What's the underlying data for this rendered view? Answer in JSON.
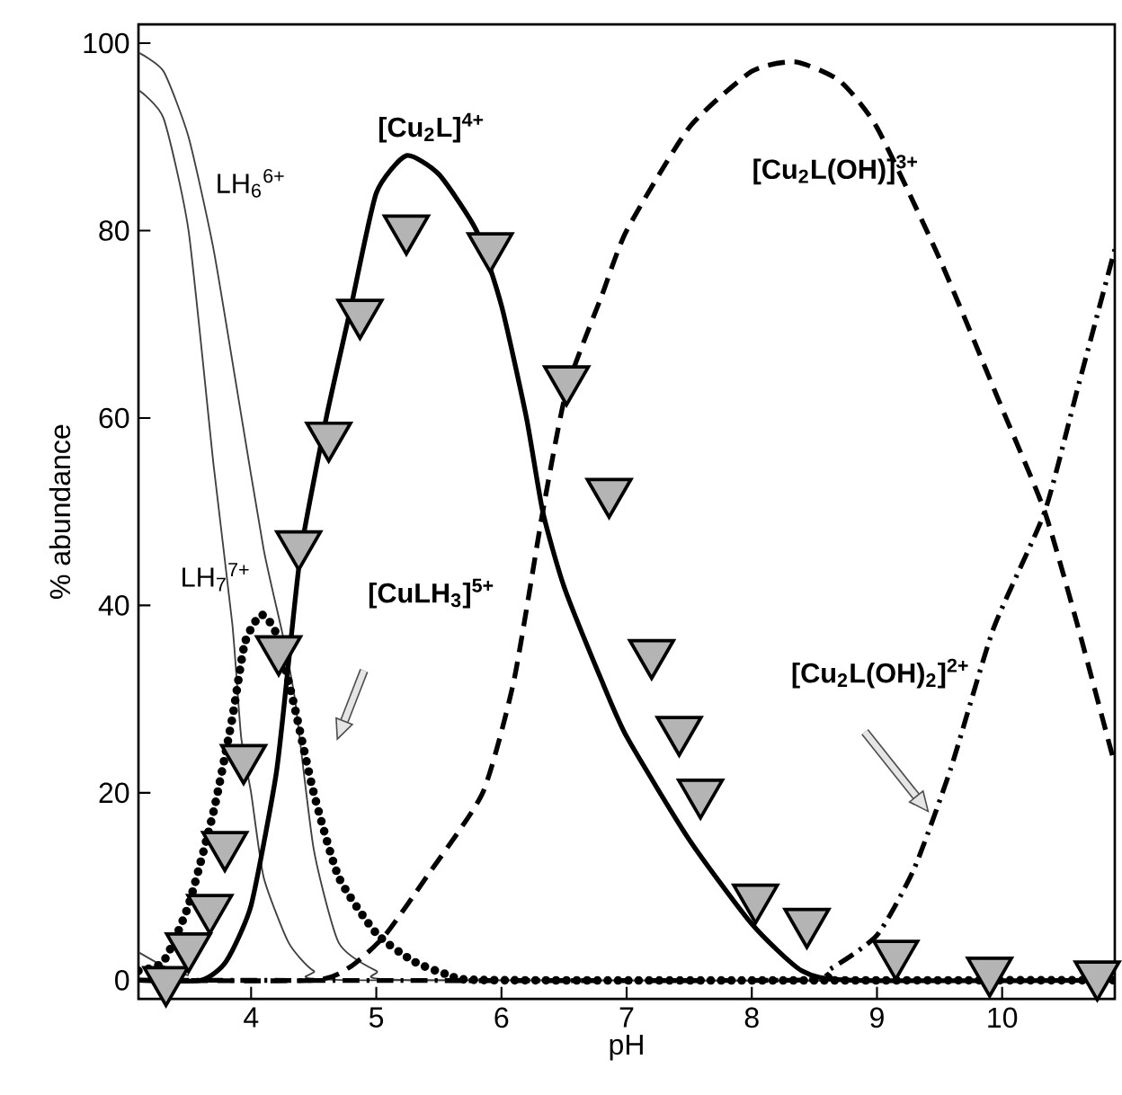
{
  "chart_data": {
    "type": "line",
    "xlabel": "pH",
    "ylabel": "% abundance",
    "xlim": [
      3.1,
      10.9
    ],
    "ylim": [
      -2,
      102
    ],
    "xticks": [
      4,
      5,
      6,
      7,
      8,
      9,
      10
    ],
    "yticks": [
      0,
      20,
      40,
      60,
      80,
      100
    ],
    "series": [
      {
        "color": "#404040",
        "line_style": "solid",
        "x": [
          3.1,
          3.3,
          3.5,
          3.7,
          3.9,
          4.1,
          4.25,
          4.35,
          4.5,
          4.7,
          5.0,
          5.3,
          10.9
        ],
        "values": [
          99,
          97,
          90,
          78,
          62,
          46,
          37,
          30,
          14,
          4,
          1,
          0,
          0
        ]
      },
      {
        "color": "#404040",
        "line_style": "solid",
        "x": [
          3.1,
          3.3,
          3.5,
          3.7,
          3.85,
          3.92,
          4.0,
          4.1,
          4.3,
          4.5,
          4.8,
          10.9
        ],
        "values": [
          95,
          92,
          80,
          55,
          38,
          26,
          20,
          11,
          4,
          1,
          0,
          0
        ]
      },
      {
        "color": "#404040",
        "line_style": "solid",
        "x": [
          3.1,
          3.3,
          3.5
        ],
        "values": [
          3,
          1.5,
          0.5
        ]
      },
      {
        "color": "#000000",
        "line_style": "dotted",
        "x": [
          3.1,
          3.3,
          3.5,
          3.7,
          3.85,
          3.95,
          4.08,
          4.2,
          4.35,
          4.5,
          4.7,
          5.0,
          5.3,
          5.6,
          6.0,
          10.9
        ],
        "values": [
          1,
          2,
          8,
          18,
          28,
          36,
          39,
          37,
          29,
          20,
          11,
          5,
          2,
          0.5,
          0,
          0
        ]
      },
      {
        "color": "#000000",
        "line_style": "solid",
        "x": [
          3.1,
          3.6,
          3.8,
          4.0,
          4.2,
          4.3,
          4.4,
          4.6,
          4.8,
          5.0,
          5.24,
          5.5,
          5.8,
          6.0,
          6.2,
          6.33,
          6.5,
          6.8,
          7.0,
          7.5,
          8.0,
          8.4,
          8.8,
          10.9
        ],
        "values": [
          0,
          0,
          2,
          8,
          22,
          34,
          46,
          60,
          72,
          84,
          88,
          86,
          80,
          72,
          60,
          50,
          42,
          32,
          26,
          15,
          6,
          1,
          0,
          0
        ]
      },
      {
        "color": "#000000",
        "line_style": "dashed",
        "x": [
          3.1,
          4.5,
          4.8,
          5.07,
          5.4,
          5.85,
          6.1,
          6.33,
          6.52,
          6.8,
          7.0,
          7.5,
          8.0,
          8.35,
          8.7,
          9.0,
          9.5,
          10.0,
          10.34,
          10.6,
          10.9
        ],
        "values": [
          0,
          0,
          1.5,
          4.8,
          11,
          20,
          32,
          50,
          63,
          73,
          80,
          91,
          97,
          98,
          96,
          91,
          77,
          61,
          50,
          38,
          23
        ]
      },
      {
        "color": "#000000",
        "line_style": "dashdot",
        "x": [
          3.1,
          8.3,
          8.6,
          9.0,
          9.3,
          9.59,
          9.93,
          10.34,
          10.6,
          10.9
        ],
        "values": [
          0,
          0,
          1,
          4.8,
          12,
          22.6,
          37.5,
          50,
          63,
          78
        ]
      },
      {
        "type": "scatter",
        "color": "#b4b4b4",
        "marker": "triangle",
        "x": [
          3.32,
          3.5,
          3.67,
          3.79,
          3.94,
          4.22,
          4.38,
          4.62,
          4.87,
          5.24,
          5.91,
          6.52,
          6.86,
          7.2,
          7.42,
          7.59,
          8.03,
          8.44,
          9.15,
          9.9,
          10.76
        ],
        "values": [
          0,
          3.6,
          7.7,
          14.4,
          23.7,
          35.3,
          46.5,
          58.1,
          71.2,
          80.2,
          78.3,
          64.1,
          52.1,
          34.9,
          26.7,
          20.0,
          8.8,
          6.2,
          2.8,
          1.0,
          0.6
        ]
      }
    ],
    "annotations": [
      "LH$_{6}$$^{6+}$",
      "LH$_{7}$$^{7+}$",
      "[Cu$_{2}$L]$^{4+}$",
      "[Cu$_{2}$L(OH)]$^{3+}$",
      "[CuLH$_{3}$]$^{5+}$",
      "[Cu$_{2}$L(OH)$_{2}$]$^{2+}$"
    ]
  }
}
